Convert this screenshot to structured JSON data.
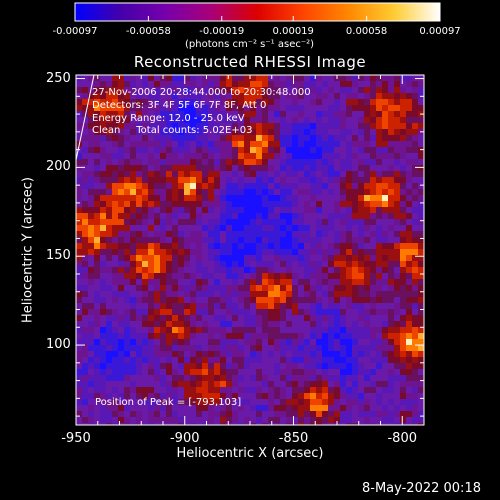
{
  "colorbar": {
    "tick_labels": [
      "-0.00097",
      "-0.00058",
      "-0.00019",
      "0.00019",
      "0.00058",
      "0.00097"
    ],
    "tick_values": [
      -0.00097,
      -0.00058,
      -0.00019,
      0.00019,
      0.00058,
      0.00097
    ],
    "range": [
      -0.00097,
      0.00097
    ],
    "unit_label": "(photons cm⁻² s⁻¹ asec⁻²)",
    "colors": [
      "#0000ff",
      "#4400aa",
      "#7700aa",
      "#aa0077",
      "#dd0000",
      "#ff4400",
      "#ff8800",
      "#ffcc33",
      "#ffffff"
    ]
  },
  "header": {
    "title": "Reconstructed RHESSI Image"
  },
  "info_lines": [
    "27-Nov-2006 20:28:44.000 to 20:30:48.000",
    "Detectors: 3F 4F 5F 6F 7F 8F, Att 0",
    "Energy Range: 12.0 - 25.0 keV",
    "Clean     Total counts: 5.02E+03"
  ],
  "peak_text": "Position of Peak = [-793,103]",
  "footer": {
    "timestamp": "8-May-2022 00:18"
  },
  "chart_data": {
    "type": "heatmap",
    "title": "Reconstructed RHESSI Image",
    "xlabel": "Heliocentric X (arcsec)",
    "ylabel": "Heliocentric Y (arcsec)",
    "xlim": [
      -950,
      -790
    ],
    "ylim": [
      55,
      252
    ],
    "x_ticks": [
      -950,
      -900,
      -850,
      -800
    ],
    "x_tick_labels": [
      "-950",
      "-900",
      "-850",
      "-800"
    ],
    "y_ticks": [
      100,
      150,
      200,
      250
    ],
    "y_tick_labels": [
      "100",
      "150",
      "200",
      "250"
    ],
    "peak": [
      -793,
      103
    ],
    "hotspots": [
      {
        "x": -895,
        "y": 190,
        "level": 0.85
      },
      {
        "x": -868,
        "y": 210,
        "level": 0.9
      },
      {
        "x": -925,
        "y": 185,
        "level": 0.75
      },
      {
        "x": -942,
        "y": 165,
        "level": 0.85
      },
      {
        "x": -812,
        "y": 185,
        "level": 0.9
      },
      {
        "x": -805,
        "y": 230,
        "level": 0.75
      },
      {
        "x": -823,
        "y": 140,
        "level": 0.7
      },
      {
        "x": -793,
        "y": 103,
        "level": 1.0
      },
      {
        "x": -862,
        "y": 130,
        "level": 0.85
      },
      {
        "x": -915,
        "y": 148,
        "level": 0.75
      },
      {
        "x": -840,
        "y": 70,
        "level": 0.7
      },
      {
        "x": -890,
        "y": 78,
        "level": 0.65
      },
      {
        "x": -935,
        "y": 235,
        "level": 0.7
      },
      {
        "x": -870,
        "y": 245,
        "level": 0.65
      },
      {
        "x": -795,
        "y": 150,
        "level": 0.65
      },
      {
        "x": -905,
        "y": 112,
        "level": 0.6
      }
    ],
    "coldspots": [
      {
        "x": -872,
        "y": 182,
        "level": 0.85
      },
      {
        "x": -875,
        "y": 150,
        "level": 0.75
      },
      {
        "x": -845,
        "y": 210,
        "level": 0.7
      },
      {
        "x": -830,
        "y": 95,
        "level": 0.7
      },
      {
        "x": -930,
        "y": 95,
        "level": 0.6
      },
      {
        "x": -900,
        "y": 225,
        "level": 0.6
      },
      {
        "x": -850,
        "y": 160,
        "level": 0.55
      }
    ]
  }
}
